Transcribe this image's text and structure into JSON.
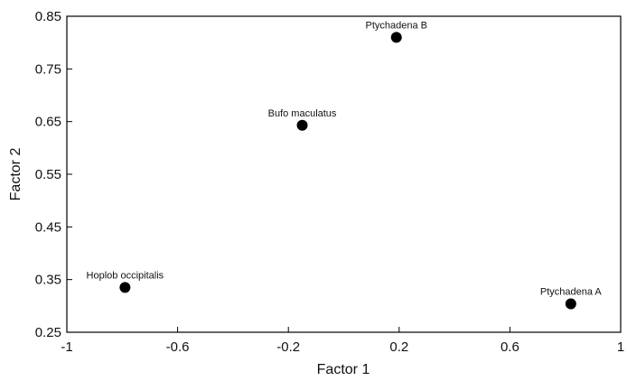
{
  "chart_data": {
    "type": "scatter",
    "xlabel": "Factor 1",
    "ylabel": "Factor 2",
    "xlim": [
      -1,
      1
    ],
    "ylim": [
      0.25,
      0.85
    ],
    "x_ticks": [
      -1,
      -0.6,
      -0.2,
      0.2,
      0.6,
      1
    ],
    "y_ticks": [
      0.25,
      0.35,
      0.45,
      0.55,
      0.65,
      0.75,
      0.85
    ],
    "x_tick_labels": [
      "-1",
      "-0.6",
      "-0.2",
      "0.2",
      "0.6",
      "1"
    ],
    "y_tick_labels": [
      "0.25",
      "0.35",
      "0.45",
      "0.55",
      "0.65",
      "0.75",
      "0.85"
    ],
    "grid": false,
    "legend": "none",
    "marker_color": "#000000",
    "points": [
      {
        "label": "Ptychadena B",
        "x": 0.19,
        "y": 0.81
      },
      {
        "label": "Bufo maculatus",
        "x": -0.15,
        "y": 0.643
      },
      {
        "label": "Hoplob  occipitalis",
        "x": -0.79,
        "y": 0.335
      },
      {
        "label": "Ptychadena A",
        "x": 0.82,
        "y": 0.304
      }
    ]
  }
}
